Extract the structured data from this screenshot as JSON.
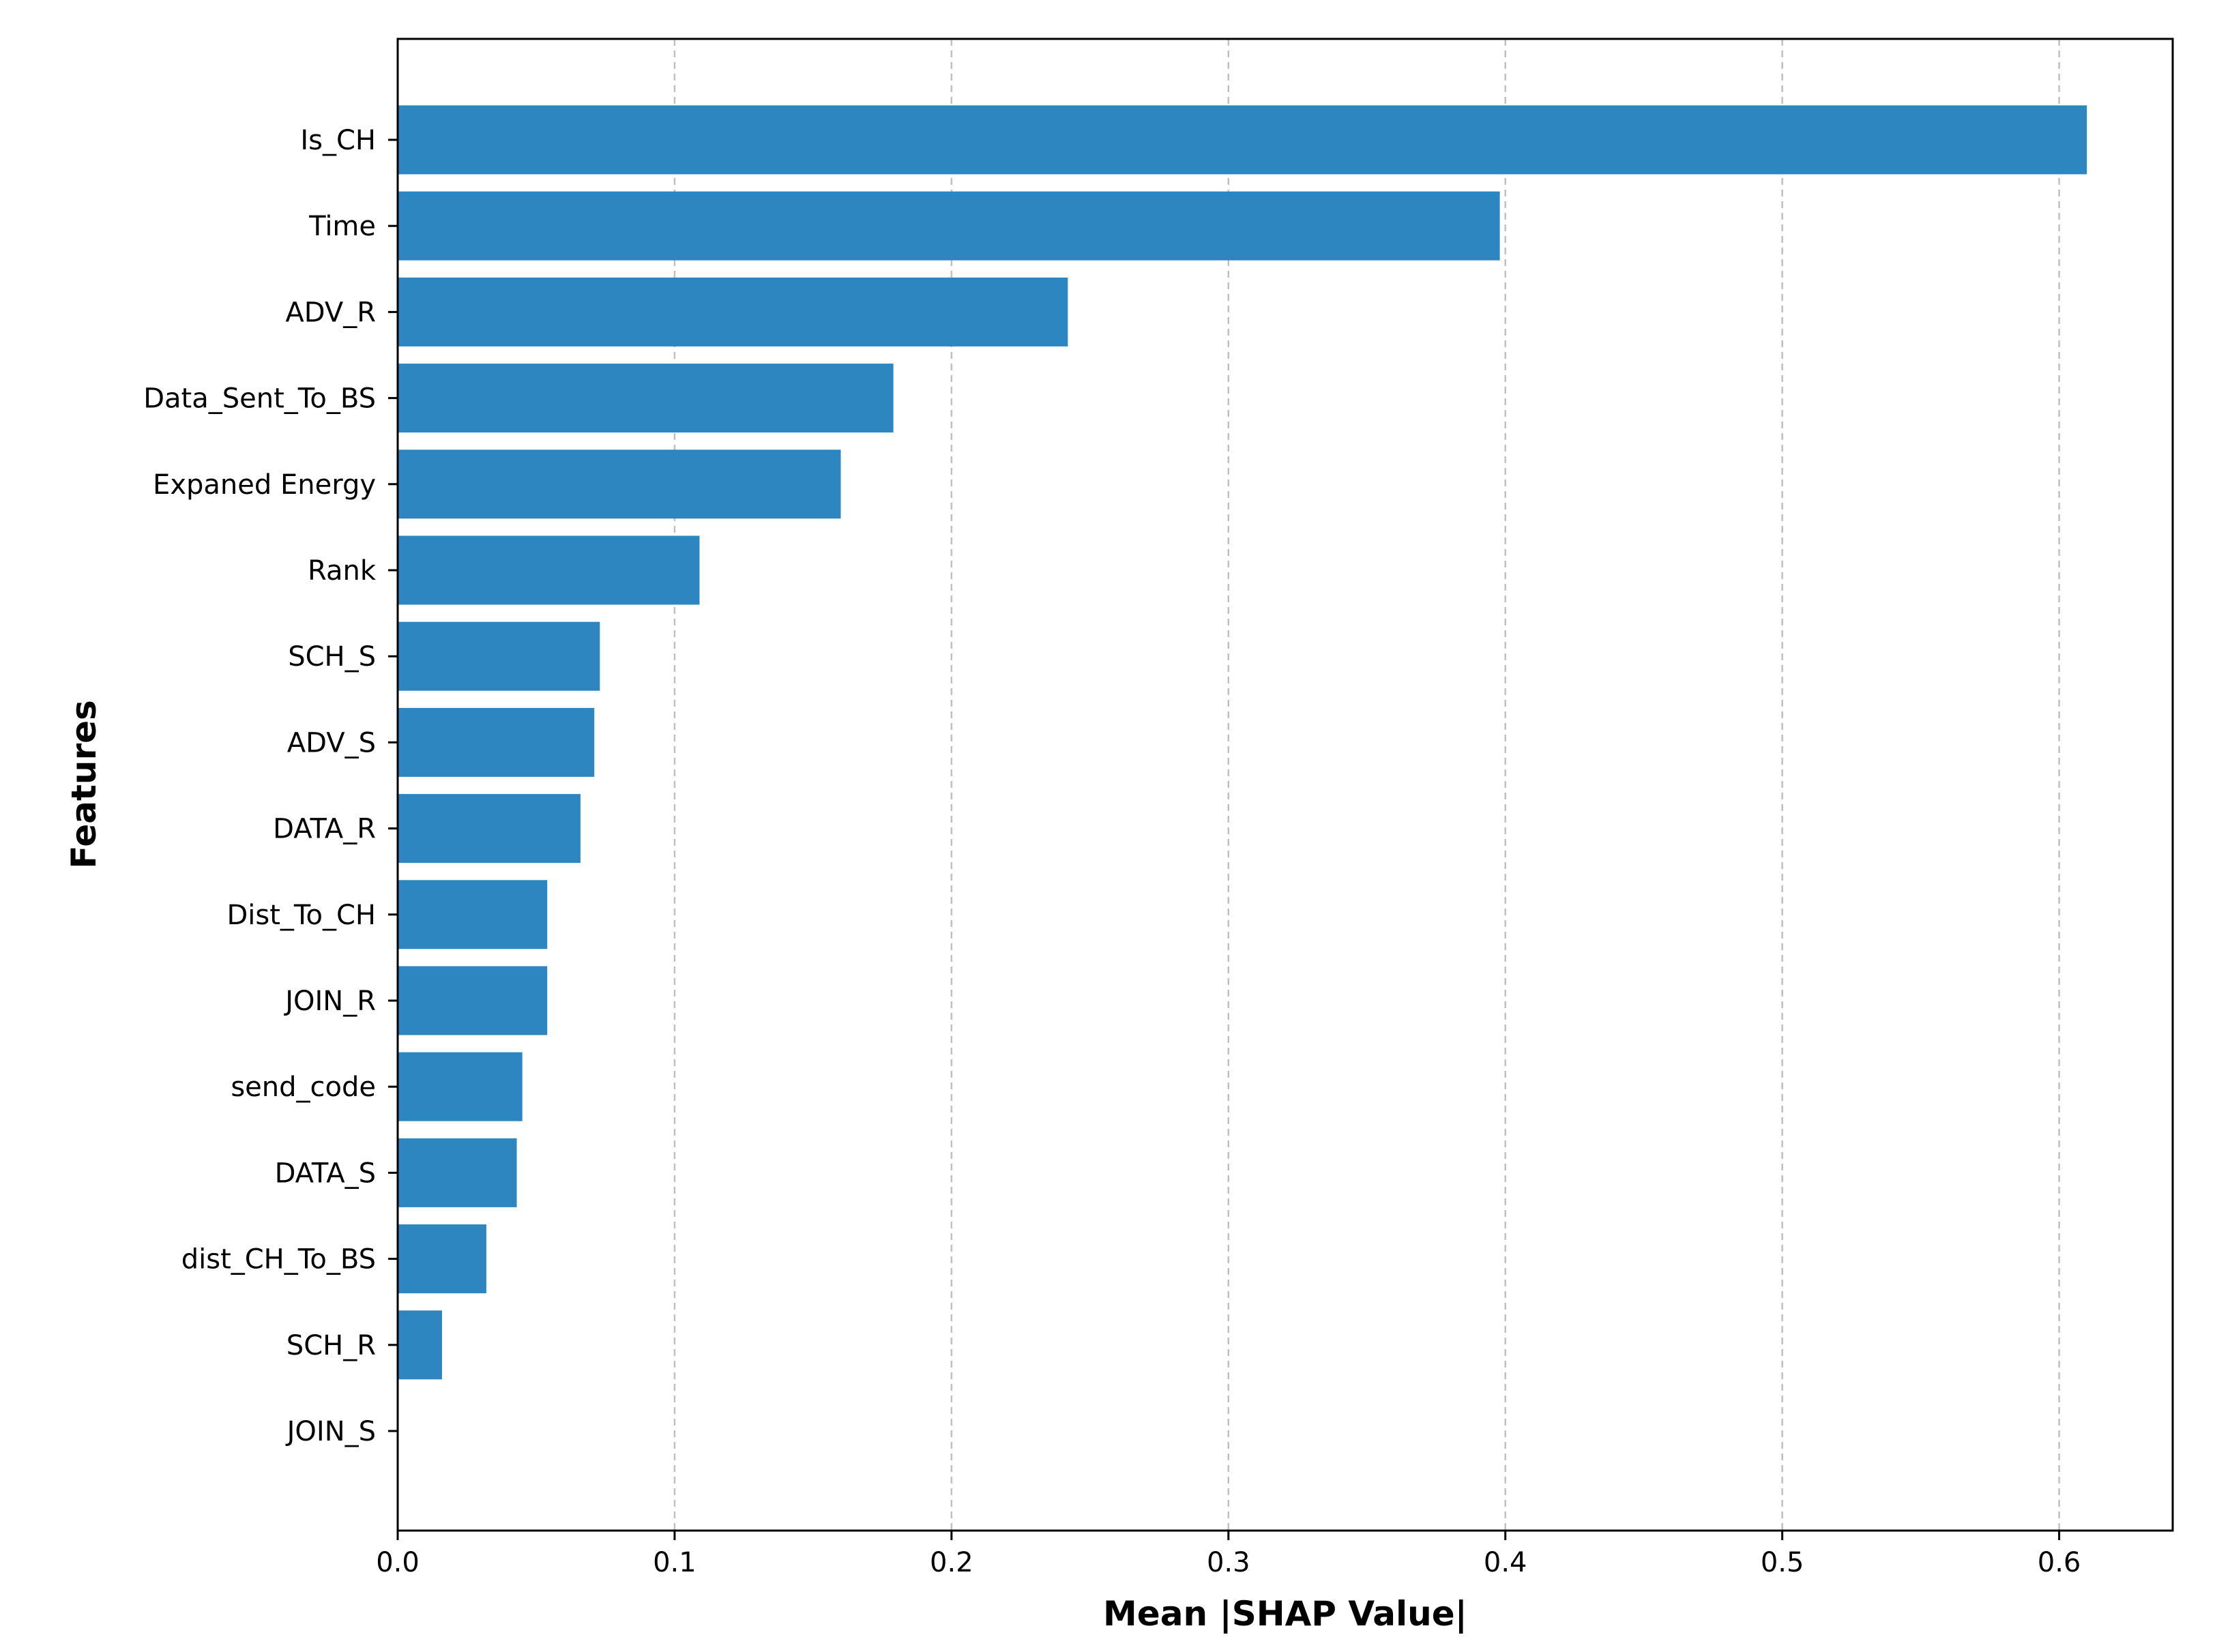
{
  "chart_data": {
    "type": "bar",
    "orientation": "horizontal",
    "title": "",
    "xlabel": "Mean |SHAP Value|",
    "ylabel": "Features",
    "categories": [
      "Is_CH",
      "Time",
      "ADV_R",
      "Data_Sent_To_BS",
      "Expaned Energy",
      "Rank",
      "SCH_S",
      "ADV_S",
      "DATA_R",
      "Dist_To_CH",
      "JOIN_R",
      "send_code",
      "DATA_S",
      "dist_CH_To_BS",
      "SCH_R",
      "JOIN_S"
    ],
    "values": [
      0.61,
      0.398,
      0.242,
      0.179,
      0.16,
      0.109,
      0.073,
      0.071,
      0.066,
      0.054,
      0.054,
      0.045,
      0.043,
      0.032,
      0.016,
      0.0
    ],
    "xlim": [
      0,
      0.641
    ],
    "xticks": [
      "0.0",
      "0.1",
      "0.2",
      "0.3",
      "0.4",
      "0.5",
      "0.6"
    ],
    "xtick_values": [
      0,
      0.1,
      0.2,
      0.3,
      0.4,
      0.5,
      0.6
    ],
    "grid": "vertical dashed",
    "bar_color": "#2e86c1",
    "grid_color": "#c0c0c0"
  }
}
